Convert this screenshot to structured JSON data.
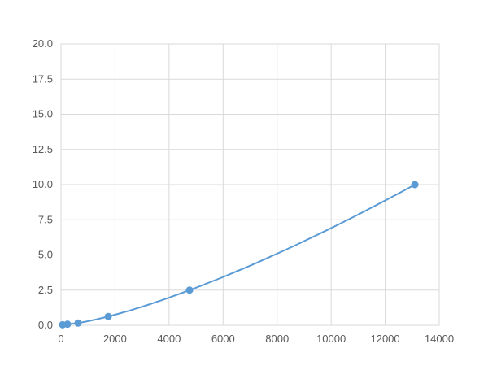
{
  "chart_data": {
    "type": "scatter",
    "title": "",
    "xlabel": "",
    "ylabel": "",
    "xlim": [
      0,
      14000
    ],
    "ylim": [
      0,
      20
    ],
    "xticks": [
      0,
      2000,
      4000,
      6000,
      8000,
      10000,
      12000,
      14000
    ],
    "yticks": [
      "0.0",
      "2.5",
      "5.0",
      "7.5",
      "10.0",
      "12.5",
      "15.0",
      "17.5",
      "20.0"
    ],
    "grid": true,
    "line": "smooth",
    "color": "#5b9bd5",
    "points": [
      {
        "x": 60,
        "y": 0.039
      },
      {
        "x": 240,
        "y": 0.078
      },
      {
        "x": 630,
        "y": 0.156
      },
      {
        "x": 1750,
        "y": 0.625
      },
      {
        "x": 4760,
        "y": 2.5
      },
      {
        "x": 13100,
        "y": 10.0
      }
    ]
  }
}
